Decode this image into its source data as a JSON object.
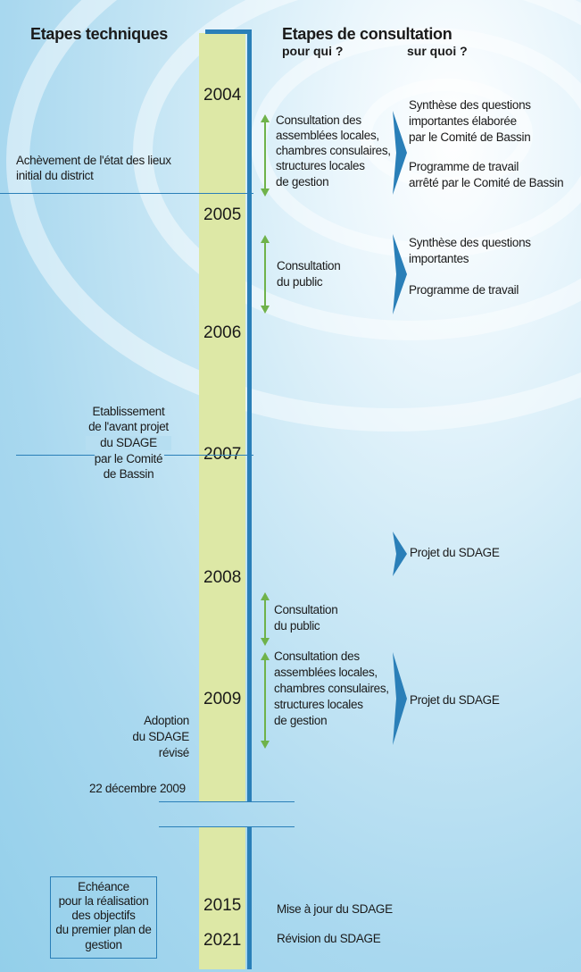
{
  "headers": {
    "left": "Etapes techniques",
    "right": "Etapes de consultation",
    "for_whom": "pour qui ?",
    "about_what": "sur quoi ?"
  },
  "years": [
    "2004",
    "2005",
    "2006",
    "2007",
    "2008",
    "2009",
    "2015",
    "2021"
  ],
  "technical": {
    "inventory": [
      "Achèvement de l'état des lieux",
      "initial du district"
    ],
    "preproject": [
      "Etablissement",
      "de l'avant projet",
      "du SDAGE",
      "par le Comité",
      "de Bassin"
    ],
    "adoption": [
      "Adoption",
      "du SDAGE",
      "révisé"
    ],
    "adoption_date": "22 décembre 2009",
    "deadline": [
      "Echéance",
      "pour la réalisation",
      "des objectifs",
      "du premier plan de",
      "gestion"
    ]
  },
  "consultations": {
    "local_bodies": [
      "Consultation des",
      "assemblées locales,",
      "chambres consulaires,",
      "structures locales",
      "de gestion"
    ],
    "public": [
      "Consultation",
      "du public"
    ]
  },
  "topics": {
    "a1": [
      "Synthèse des questions",
      "importantes élaborée",
      "par le Comité de Bassin"
    ],
    "a2": [
      "Programme de travail",
      "arrêté par le Comité de Bassin"
    ],
    "b1": [
      "Synthèse des questions",
      "importantes"
    ],
    "b2": "Programme de travail",
    "c": "Projet du SDAGE",
    "d": "Projet du SDAGE"
  },
  "later": {
    "update": "Mise à jour du SDAGE",
    "revision": "Révision du SDAGE"
  },
  "colors": {
    "band": "#dde8a6",
    "line": "#2a7fb8",
    "arrow": "#6fb24a",
    "background": "#a9d8ef"
  }
}
